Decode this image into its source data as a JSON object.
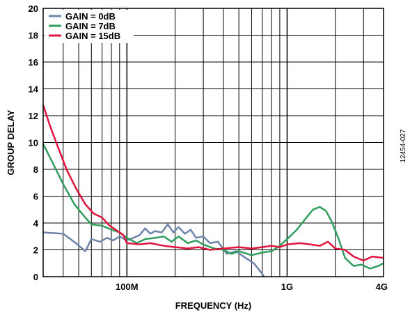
{
  "chart_data": {
    "type": "line",
    "xlabel": "FREQUENCY (Hz)",
    "ylabel": "GROUP DELAY",
    "x_scale": "log",
    "xlim": [
      30000000,
      4000000000
    ],
    "ylim": [
      0,
      20
    ],
    "y_ticks": [
      0,
      2,
      4,
      6,
      8,
      10,
      12,
      14,
      16,
      18,
      20
    ],
    "x_tick_labels": [
      {
        "value": 100000000,
        "label": "100M"
      },
      {
        "value": 1000000000,
        "label": "1G"
      },
      {
        "value": 4000000000,
        "label": "4G"
      }
    ],
    "grid": true,
    "legend_position": "top-left",
    "figure_id": "12454-027",
    "series": [
      {
        "name": "GAIN = 0dB",
        "color": "#6f84aa",
        "points": [
          [
            30000000,
            3.3
          ],
          [
            40000000,
            3.2
          ],
          [
            48000000,
            2.5
          ],
          [
            55000000,
            1.9
          ],
          [
            60000000,
            2.8
          ],
          [
            68000000,
            2.6
          ],
          [
            75000000,
            2.9
          ],
          [
            82000000,
            2.7
          ],
          [
            90000000,
            3.0
          ],
          [
            100000000,
            2.7
          ],
          [
            110000000,
            2.9
          ],
          [
            120000000,
            3.1
          ],
          [
            130000000,
            3.6
          ],
          [
            140000000,
            3.2
          ],
          [
            150000000,
            3.4
          ],
          [
            165000000,
            3.3
          ],
          [
            180000000,
            3.9
          ],
          [
            195000000,
            3.3
          ],
          [
            210000000,
            3.7
          ],
          [
            230000000,
            3.2
          ],
          [
            250000000,
            3.5
          ],
          [
            270000000,
            2.9
          ],
          [
            300000000,
            3.0
          ],
          [
            330000000,
            2.5
          ],
          [
            370000000,
            2.6
          ],
          [
            420000000,
            1.7
          ],
          [
            480000000,
            1.9
          ],
          [
            550000000,
            1.4
          ],
          [
            620000000,
            1.0
          ],
          [
            680000000,
            0.4
          ],
          [
            720000000,
            0.0
          ]
        ]
      },
      {
        "name": "GAIN = 7dB",
        "color": "#2f9e5e",
        "points": [
          [
            30000000,
            9.9
          ],
          [
            35000000,
            8.3
          ],
          [
            40000000,
            6.9
          ],
          [
            47000000,
            5.4
          ],
          [
            55000000,
            4.4
          ],
          [
            60000000,
            3.9
          ],
          [
            70000000,
            3.8
          ],
          [
            80000000,
            3.5
          ],
          [
            90000000,
            3.3
          ],
          [
            100000000,
            2.9
          ],
          [
            115000000,
            2.5
          ],
          [
            130000000,
            2.8
          ],
          [
            150000000,
            2.9
          ],
          [
            170000000,
            3.0
          ],
          [
            190000000,
            2.6
          ],
          [
            210000000,
            3.0
          ],
          [
            240000000,
            2.5
          ],
          [
            270000000,
            2.7
          ],
          [
            300000000,
            2.4
          ],
          [
            350000000,
            2.1
          ],
          [
            400000000,
            2.0
          ],
          [
            450000000,
            1.7
          ],
          [
            500000000,
            1.9
          ],
          [
            600000000,
            1.6
          ],
          [
            700000000,
            1.8
          ],
          [
            800000000,
            1.9
          ],
          [
            900000000,
            2.3
          ],
          [
            1000000000,
            2.8
          ],
          [
            1150000000,
            3.5
          ],
          [
            1300000000,
            4.3
          ],
          [
            1450000000,
            5.0
          ],
          [
            1600000000,
            5.2
          ],
          [
            1750000000,
            4.9
          ],
          [
            1900000000,
            4.1
          ],
          [
            2100000000,
            2.8
          ],
          [
            2300000000,
            1.4
          ],
          [
            2600000000,
            0.8
          ],
          [
            2900000000,
            0.9
          ],
          [
            3300000000,
            0.6
          ],
          [
            3700000000,
            0.8
          ],
          [
            4000000000,
            1.0
          ]
        ]
      },
      {
        "name": "GAIN = 15dB",
        "color": "#e0143c",
        "points": [
          [
            30000000,
            12.8
          ],
          [
            33000000,
            11.3
          ],
          [
            37000000,
            9.7
          ],
          [
            42000000,
            8.0
          ],
          [
            48000000,
            6.6
          ],
          [
            55000000,
            5.4
          ],
          [
            62000000,
            4.7
          ],
          [
            70000000,
            4.4
          ],
          [
            78000000,
            3.8
          ],
          [
            85000000,
            3.5
          ],
          [
            95000000,
            3.1
          ],
          [
            100000000,
            2.5
          ],
          [
            120000000,
            2.4
          ],
          [
            140000000,
            2.5
          ],
          [
            170000000,
            2.3
          ],
          [
            200000000,
            2.2
          ],
          [
            240000000,
            2.1
          ],
          [
            280000000,
            2.2
          ],
          [
            330000000,
            2.0
          ],
          [
            400000000,
            2.1
          ],
          [
            500000000,
            2.2
          ],
          [
            600000000,
            2.1
          ],
          [
            700000000,
            2.2
          ],
          [
            800000000,
            2.3
          ],
          [
            900000000,
            2.2
          ],
          [
            1000000000,
            2.4
          ],
          [
            1200000000,
            2.5
          ],
          [
            1400000000,
            2.4
          ],
          [
            1600000000,
            2.3
          ],
          [
            1800000000,
            2.6
          ],
          [
            2000000000,
            2.1
          ],
          [
            2300000000,
            2.0
          ],
          [
            2600000000,
            1.5
          ],
          [
            3000000000,
            1.2
          ],
          [
            3400000000,
            1.5
          ],
          [
            4000000000,
            1.4
          ]
        ]
      }
    ]
  }
}
